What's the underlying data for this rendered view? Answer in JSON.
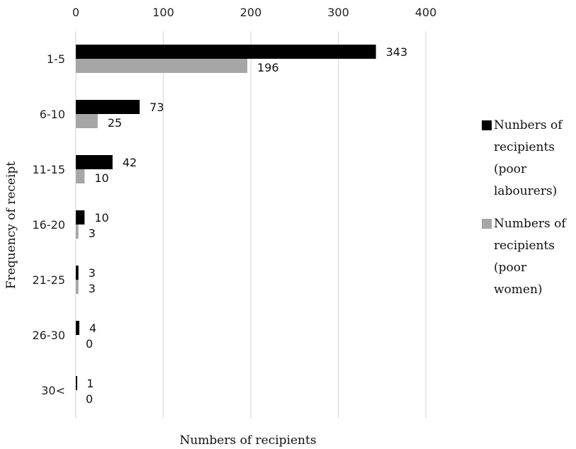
{
  "chart_data": {
    "type": "bar",
    "orientation": "horizontal",
    "categories": [
      "1-5",
      "6-10",
      "11-15",
      "16-20",
      "21-25",
      "26-30",
      "30<"
    ],
    "series": [
      {
        "name": "Nunbers of recipients (poor labourers)",
        "legend_lines": [
          "Nunbers of",
          "recipients",
          "(poor",
          "labourers)"
        ],
        "color": "#000000",
        "values": [
          343,
          73,
          42,
          10,
          3,
          4,
          1
        ]
      },
      {
        "name": "Numbers of recipients (poor women)",
        "legend_lines": [
          "Numbers of",
          "recipients",
          "(poor",
          "women)"
        ],
        "color": "#a6a6a6",
        "values": [
          196,
          25,
          10,
          3,
          3,
          0,
          0
        ]
      }
    ],
    "xlabel": "Numbers of recipients",
    "ylabel": "Frequency of receipt",
    "xlim": [
      0,
      400
    ],
    "xticks": [
      "0",
      "100",
      "200",
      "300",
      "400"
    ],
    "x_axis_position": "top",
    "grid": "vertical",
    "legend_position": "right"
  }
}
